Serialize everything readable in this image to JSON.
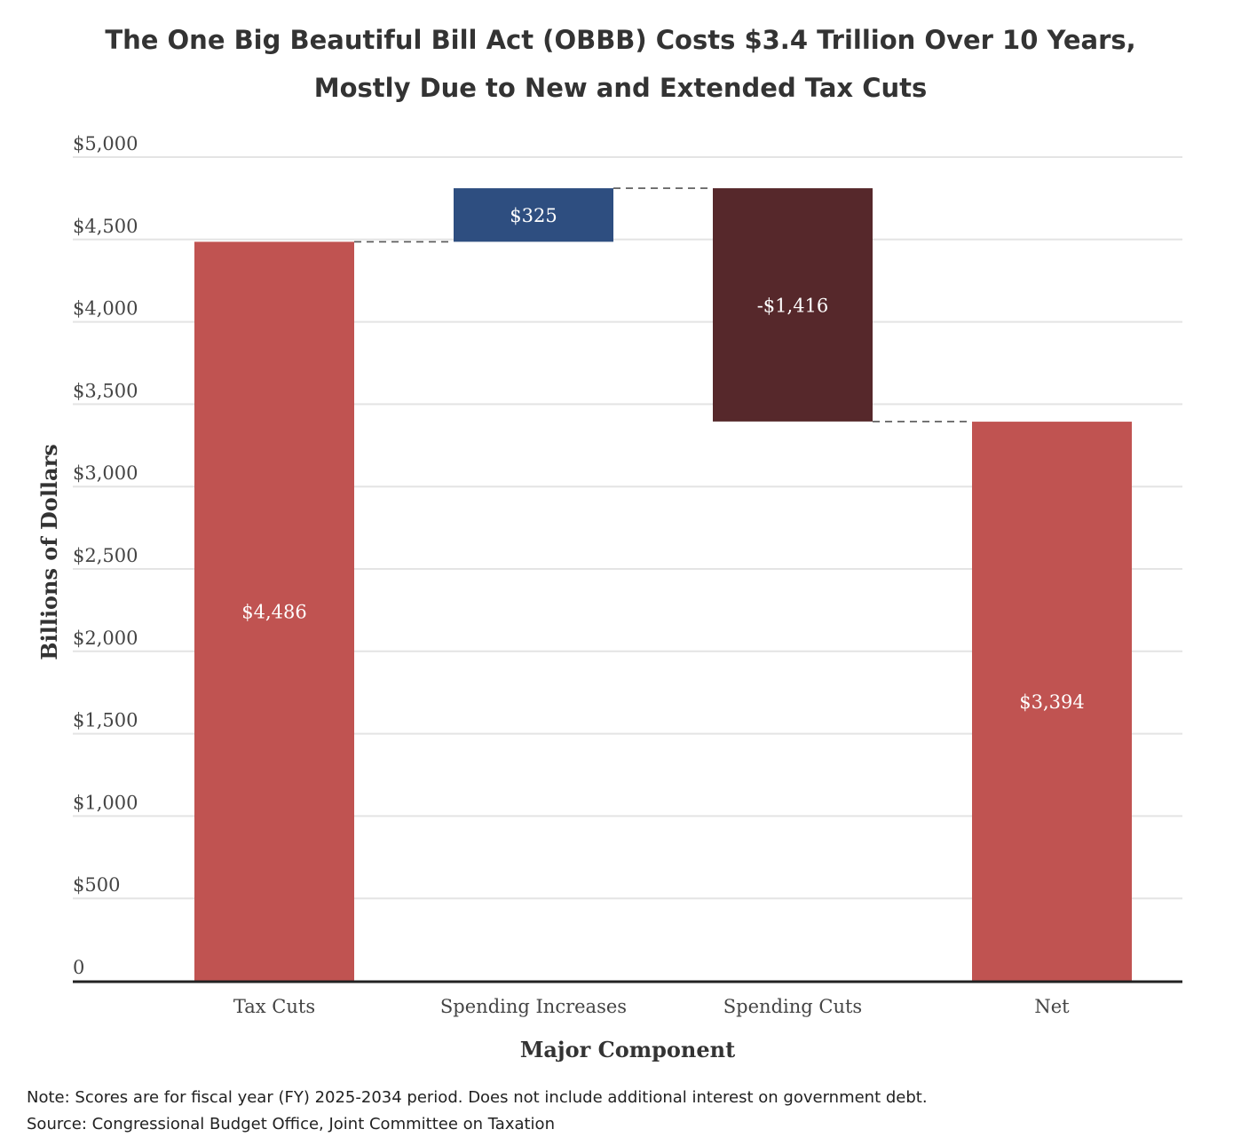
{
  "title_line1": "The One Big Beautiful Bill Act (OBBB) Costs $3.4 Trillion Over 10 Years,",
  "title_line2": "Mostly Due to New and Extended Tax Cuts",
  "note": "Note: Scores are for fiscal year (FY) 2025-2034 period. Does not include additional interest on government debt.",
  "source": "Source: Congressional Budget Office, Joint Committee on Taxation",
  "chart_data": {
    "type": "bar",
    "subtype": "waterfall",
    "xlabel": "Major Component",
    "ylabel": "Billions of Dollars",
    "ylim": [
      0,
      5000
    ],
    "yticks": [
      0,
      500,
      1000,
      1500,
      2000,
      2500,
      3000,
      3500,
      4000,
      4500,
      5000
    ],
    "ytick_labels": [
      "0",
      "$500",
      "$1,000",
      "$1,500",
      "$2,000",
      "$2,500",
      "$3,000",
      "$3,500",
      "$4,000",
      "$4,500",
      "$5,000"
    ],
    "grid": true,
    "categories": [
      "Tax Cuts",
      "Spending Increases",
      "Spending Cuts",
      "Net"
    ],
    "values": [
      4486,
      325,
      -1416,
      3394
    ],
    "bar_labels": [
      "$4,486",
      "$325",
      "-$1,416",
      "$3,394"
    ],
    "bar_base": [
      0,
      4486,
      4811,
      0
    ],
    "bar_top": [
      4486,
      4811,
      3395,
      3394
    ],
    "colors": [
      "#c05351",
      "#2e4e80",
      "#56282b",
      "#c05351"
    ]
  }
}
